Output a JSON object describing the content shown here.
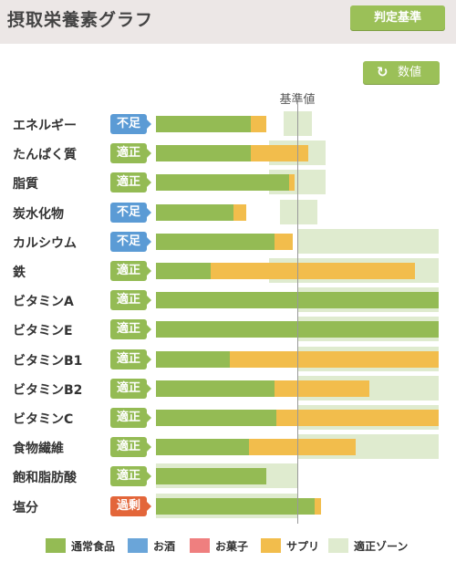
{
  "header": {
    "title": "摂取栄養素グラフ",
    "criteria_button": "判定基準"
  },
  "values_button": {
    "label": "数値",
    "icon": "refresh-icon"
  },
  "baseline_label": "基準値",
  "status_colors": {
    "不足": "#5b9bd5",
    "適正": "#94bb54",
    "過剰": "#e3663a"
  },
  "colors": {
    "normal_food": "#94bb54",
    "alcohol": "#6aa5d9",
    "sweets": "#ef7f7f",
    "supplement": "#f2bd4c",
    "optimal_zone": "#dfebcf"
  },
  "chart_data": {
    "type": "bar",
    "orientation": "horizontal",
    "stacked": true,
    "baseline": 100,
    "categories": [
      "エネルギー",
      "たんぱく質",
      "脂質",
      "炭水化物",
      "カルシウム",
      "鉄",
      "ビタミンA",
      "ビタミンE",
      "ビタミンB1",
      "ビタミンB2",
      "ビタミンC",
      "食物繊維",
      "飽和脂肪酸",
      "塩分"
    ],
    "status": [
      "不足",
      "適正",
      "適正",
      "不足",
      "不足",
      "適正",
      "適正",
      "適正",
      "適正",
      "適正",
      "適正",
      "適正",
      "適正",
      "過剰"
    ],
    "series": [
      {
        "name": "通常食品",
        "values": [
          67,
          67,
          94,
          55,
          84,
          39,
          200,
          200,
          52,
          84,
          85,
          66,
          78,
          112
        ]
      },
      {
        "name": "サプリ",
        "values": [
          11,
          41,
          4,
          9,
          13,
          144,
          0,
          0,
          148,
          67,
          115,
          75,
          0,
          5
        ]
      }
    ],
    "optimal_zone": [
      [
        90,
        110
      ],
      [
        80,
        120
      ],
      [
        80,
        120
      ],
      [
        88,
        114
      ],
      [
        100,
        200
      ],
      [
        80,
        200
      ],
      [
        100,
        200
      ],
      [
        100,
        200
      ],
      [
        100,
        200
      ],
      [
        100,
        200
      ],
      [
        100,
        200
      ],
      [
        100,
        200
      ],
      [
        0,
        100
      ],
      [
        0,
        100
      ]
    ],
    "legend": [
      "通常食品",
      "お酒",
      "お菓子",
      "サプリ",
      "適正ゾーン"
    ]
  }
}
